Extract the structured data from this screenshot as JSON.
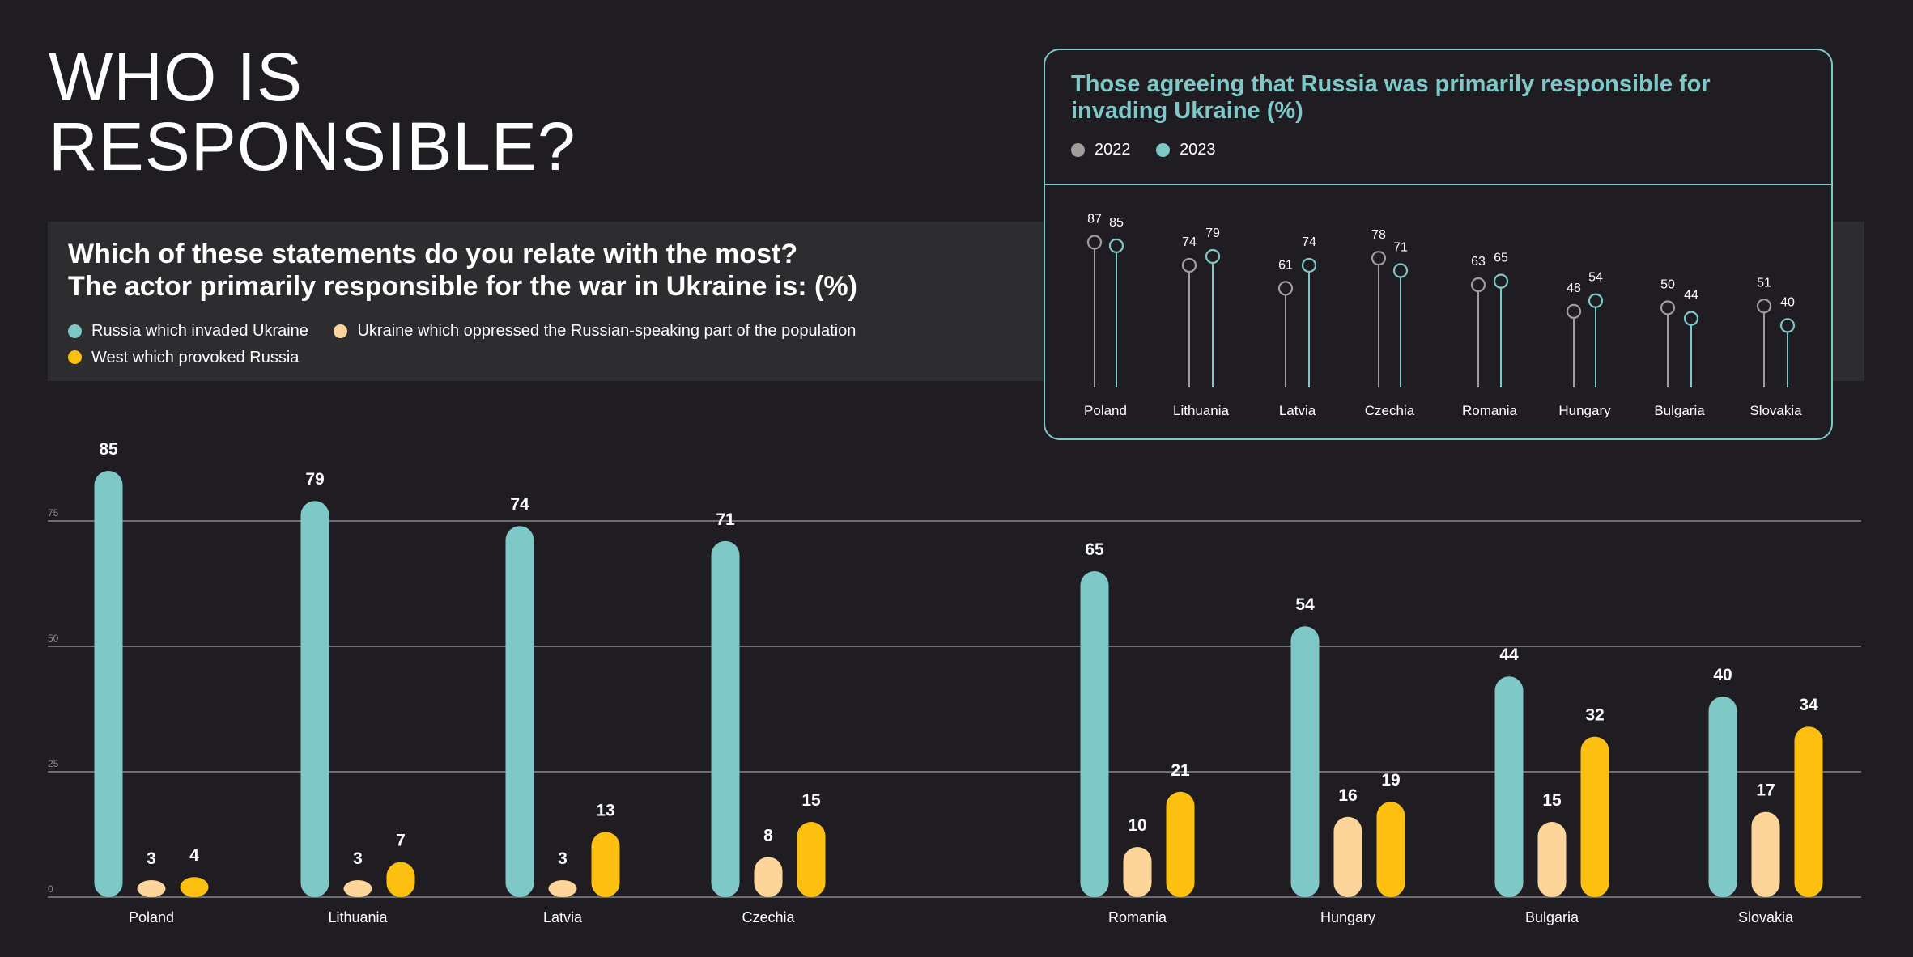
{
  "page_title_lines": [
    "WHO IS",
    "RESPONSIBLE?"
  ],
  "question_lines": [
    "Which of these statements do you relate with the most?",
    "The actor primarily responsible for the war in Ukraine is: (%)"
  ],
  "colors": {
    "background": "#1f1d22",
    "russia": "#7ec8c8",
    "ukraine": "#fdd49a",
    "west": "#fdc010",
    "y2022": "#a39c9c",
    "y2023": "#7ec8c8"
  },
  "chart_data": [
    {
      "type": "bar",
      "categories": [
        "Poland",
        "Lithuania",
        "Latvia",
        "Czechia",
        "Romania",
        "Hungary",
        "Bulgaria",
        "Slovakia"
      ],
      "series": [
        {
          "name": "Russia which invaded Ukraine",
          "color": "#7ec8c8",
          "values": [
            85,
            79,
            74,
            71,
            65,
            54,
            44,
            40
          ]
        },
        {
          "name": "Ukraine which oppressed the Russian-speaking part of the population",
          "color": "#fdd49a",
          "values": [
            3,
            3,
            3,
            8,
            10,
            16,
            15,
            17
          ]
        },
        {
          "name": "West which provoked Russia",
          "color": "#fdc010",
          "values": [
            4,
            7,
            13,
            15,
            21,
            19,
            32,
            34
          ]
        }
      ],
      "yticks": [
        0,
        25,
        50,
        75
      ],
      "ylim": [
        0,
        85
      ],
      "grid": true,
      "legend": "top-left"
    },
    {
      "type": "lollipop",
      "title": "Those agreeing that Russia was primarily responsible for invading Ukraine  (%)",
      "categories": [
        "Poland",
        "Lithuania",
        "Latvia",
        "Czechia",
        "Romania",
        "Hungary",
        "Bulgaria",
        "Slovakia"
      ],
      "series": [
        {
          "name": "2022",
          "color": "#a39c9c",
          "values": [
            87,
            74,
            61,
            78,
            63,
            48,
            50,
            51
          ]
        },
        {
          "name": "2023",
          "color": "#7ec8c8",
          "values": [
            85,
            79,
            74,
            71,
            65,
            54,
            44,
            40
          ]
        }
      ],
      "legend": "top-left"
    }
  ]
}
